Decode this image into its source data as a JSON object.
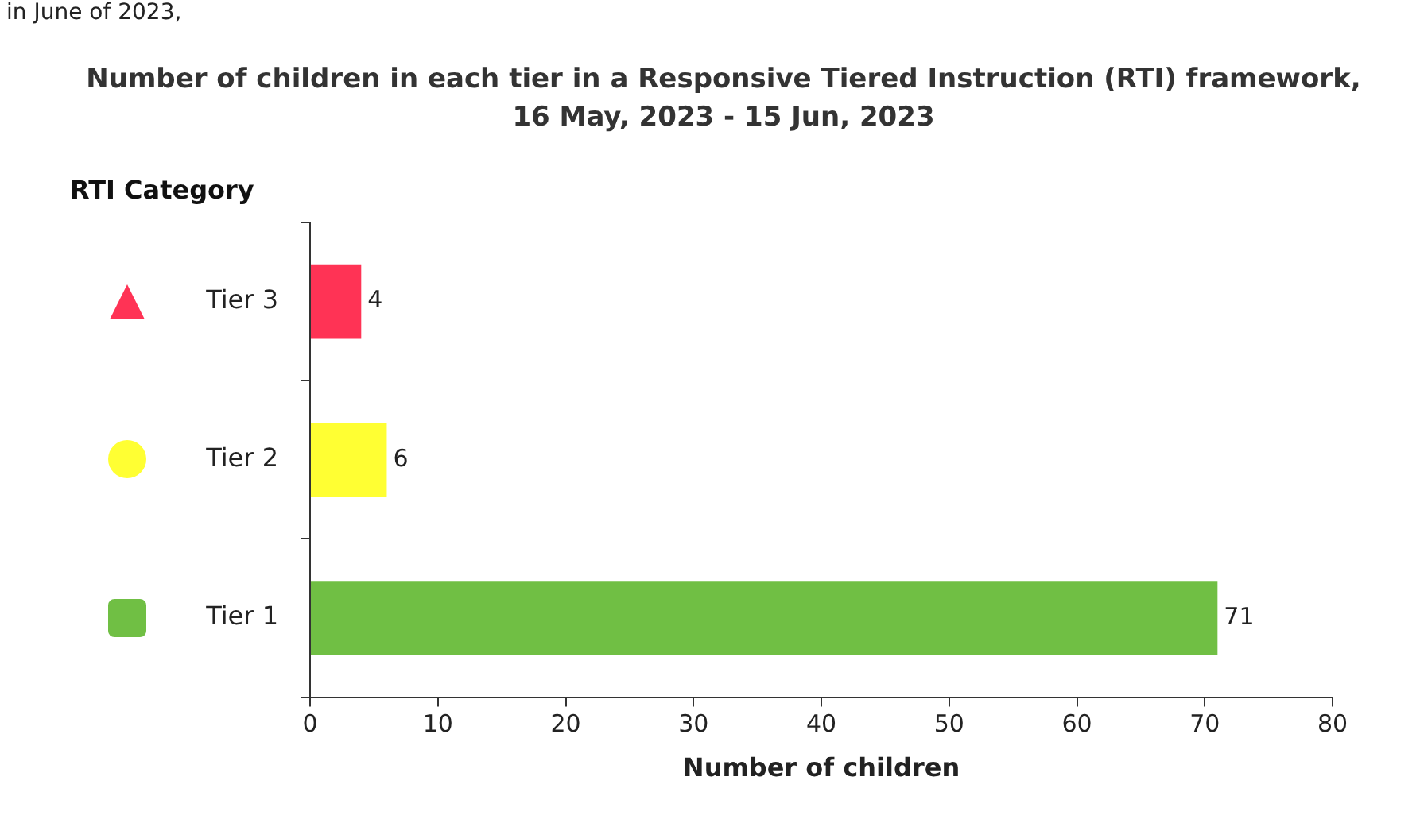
{
  "chart_data": {
    "type": "bar",
    "orientation": "horizontal",
    "title": "Number of children in each tier in a Responsive Tiered Instruction (RTI) framework, 16 May, 2023 - 15 Jun, 2023",
    "ylabel": "RTI Category",
    "xlabel": "Number of children",
    "categories": [
      "Tier 3",
      "Tier 2",
      "Tier 1"
    ],
    "values": [
      4,
      6,
      71
    ],
    "colors": [
      "#ff3355",
      "#ffff33",
      "#70bf44"
    ],
    "xlim": [
      0,
      80
    ],
    "xticks": [
      0,
      10,
      20,
      30,
      40,
      50,
      60,
      70,
      80
    ],
    "data_labels": true,
    "grid": false,
    "legend": false,
    "annotations": [
      "in June of 2023,"
    ]
  }
}
